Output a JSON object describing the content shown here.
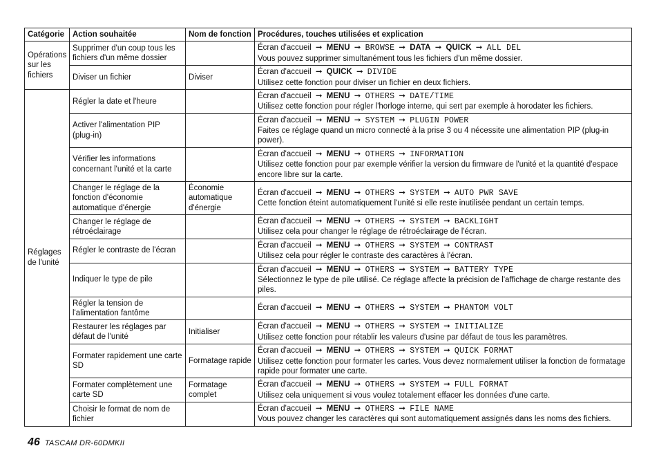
{
  "headers": {
    "cat": "Catégorie",
    "action": "Action souhaitée",
    "func": "Nom de fonction",
    "proc": "Procédures, touches utilisées et explication"
  },
  "cats": {
    "files": "Opérations sur les fichiers",
    "unit": "Réglages de l'unité"
  },
  "prefix": "Écran d'accueil",
  "arrow": "➞",
  "rows": {
    "r1_action": "Supprimer d'un coup tous les fichiers d'un même dossier",
    "r1_steps": [
      "MENU",
      "BROWSE",
      "DATA",
      "QUICK",
      "ALL DEL"
    ],
    "r1_stepflags": [
      "b",
      "m",
      "b",
      "b",
      "m"
    ],
    "r1_desc": "Vous pouvez supprimer simultanément tous les fichiers d'un même dossier.",
    "r2_action": "Diviser un fichier",
    "r2_func": "Diviser",
    "r2_steps": [
      "QUICK",
      "DIVIDE"
    ],
    "r2_stepflags": [
      "b",
      "m"
    ],
    "r2_desc": "Utilisez cette fonction pour diviser un fichier en deux fichiers.",
    "r3_action": "Régler la date et l'heure",
    "r3_steps": [
      "MENU",
      "OTHERS",
      "DATE/TIME"
    ],
    "r3_stepflags": [
      "b",
      "m",
      "m"
    ],
    "r3_desc": "Utilisez cette fonction pour régler l'horloge interne, qui sert par exemple à horodater les fichiers.",
    "r4_action": "Activer l'alimentation PIP (plug-in)",
    "r4_steps": [
      "MENU",
      "SYSTEM",
      "PLUGIN POWER"
    ],
    "r4_stepflags": [
      "b",
      "m",
      "m"
    ],
    "r4_desc": "Faites ce réglage quand un micro connecté à la prise 3 ou 4 nécessite une alimentation PIP (plug-in power).",
    "r5_action": "Vérifier les informations concernant l'unité et la carte",
    "r5_steps": [
      "MENU",
      "OTHERS",
      "INFORMATION"
    ],
    "r5_stepflags": [
      "b",
      "m",
      "m"
    ],
    "r5_desc": "Utilisez cette fonction pour par exemple vérifier la version du firmware de l'unité et la quantité d'espace encore libre sur la carte.",
    "r6_action": "Changer le réglage de la fonction d'économie automatique d'énergie",
    "r6_func": "Économie automatique d'énergie",
    "r6_steps": [
      "MENU",
      "OTHERS",
      "SYSTEM",
      "AUTO PWR SAVE"
    ],
    "r6_stepflags": [
      "b",
      "m",
      "m",
      "m"
    ],
    "r6_desc": "Cette fonction éteint automatiquement l'unité si elle reste inutilisée pendant un certain temps.",
    "r7_action": "Changer le réglage de rétroéclairage",
    "r7_steps": [
      "MENU",
      "OTHERS",
      "SYSTEM",
      "BACKLIGHT"
    ],
    "r7_stepflags": [
      "b",
      "m",
      "m",
      "m"
    ],
    "r7_desc": "Utilisez cela pour changer le réglage de rétroéclairage de l'écran.",
    "r8_action": "Régler le contraste de l'écran",
    "r8_steps": [
      "MENU",
      "OTHERS",
      "SYSTEM",
      "CONTRAST"
    ],
    "r8_stepflags": [
      "b",
      "m",
      "m",
      "m"
    ],
    "r8_desc": "Utilisez cela pour régler le contraste des caractères à l'écran.",
    "r9_action": "Indiquer le type de pile",
    "r9_steps": [
      "MENU",
      "OTHERS",
      "SYSTEM",
      "BATTERY TYPE"
    ],
    "r9_stepflags": [
      "b",
      "m",
      "m",
      "m"
    ],
    "r9_desc": "Sélectionnez le type de pile utilisé. Ce réglage affecte la précision de l'affichage de charge restante des piles.",
    "r10_action": "Régler la tension de l'alimentation fantôme",
    "r10_steps": [
      "MENU",
      "OTHERS",
      "SYSTEM",
      "PHANTOM VOLT"
    ],
    "r10_stepflags": [
      "b",
      "m",
      "m",
      "m"
    ],
    "r10_desc": "",
    "r11_action": "Restaurer les réglages par défaut de l'unité",
    "r11_func": "Initialiser",
    "r11_steps": [
      "MENU",
      "OTHERS",
      "SYSTEM",
      "INITIALIZE"
    ],
    "r11_stepflags": [
      "b",
      "m",
      "m",
      "m"
    ],
    "r11_desc": "Utilisez cette fonction pour rétablir les valeurs d'usine par défaut de tous les paramètres.",
    "r12_action": "Formater rapidement une carte SD",
    "r12_func": "Formatage rapide",
    "r12_steps": [
      "MENU",
      "OTHERS",
      "SYSTEM",
      "QUICK FORMAT"
    ],
    "r12_stepflags": [
      "b",
      "m",
      "m",
      "m"
    ],
    "r12_desc": "Utilisez cette fonction pour formater les cartes. Vous devez normalement utiliser la fonction de formatage rapide pour formater une carte.",
    "r13_action": "Formater complètement une carte SD",
    "r13_func": "Formatage complet",
    "r13_steps": [
      "MENU",
      "OTHERS",
      "SYSTEM",
      "FULL FORMAT"
    ],
    "r13_stepflags": [
      "b",
      "m",
      "m",
      "m"
    ],
    "r13_desc": "Utilisez cela uniquement si vous voulez totalement effacer les données d'une carte.",
    "r14_action": "Choisir le format de nom de fichier",
    "r14_steps": [
      "MENU",
      "OTHERS",
      "FILE NAME"
    ],
    "r14_stepflags": [
      "b",
      "m",
      "m"
    ],
    "r14_desc": "Vous pouvez changer les caractères qui sont automatiquement assignés dans les noms des fichiers."
  },
  "footer": {
    "page": "46",
    "model": "TASCAM  DR-60DMKII"
  }
}
